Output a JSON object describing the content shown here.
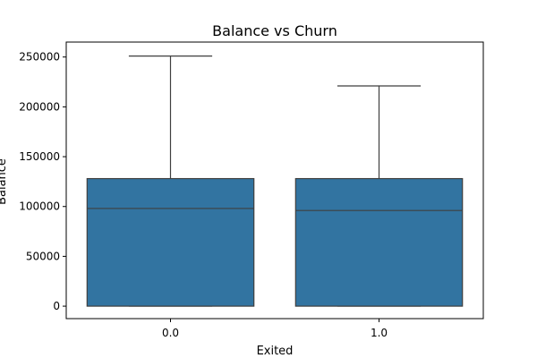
{
  "chart_data": {
    "type": "box",
    "title": "Balance vs Churn",
    "xlabel": "Exited",
    "ylabel": "Balance",
    "categories": [
      "0.0",
      "1.0"
    ],
    "boxes": [
      {
        "category": "0.0",
        "min": 0,
        "q1": 0,
        "median": 98000,
        "q3": 128000,
        "max": 251000
      },
      {
        "category": "1.0",
        "min": 0,
        "q1": 0,
        "median": 96000,
        "q3": 128000,
        "max": 221000
      }
    ],
    "yticks": [
      0,
      50000,
      100000,
      150000,
      200000,
      250000
    ],
    "ytick_labels": [
      "0",
      "50000",
      "100000",
      "150000",
      "200000",
      "250000"
    ],
    "ylim": [
      -12500,
      265000
    ],
    "grid": false,
    "legend": "none",
    "colors": {
      "box_fill": "#3274a1",
      "line": "#3f3f3f",
      "axis": "#000000"
    }
  }
}
